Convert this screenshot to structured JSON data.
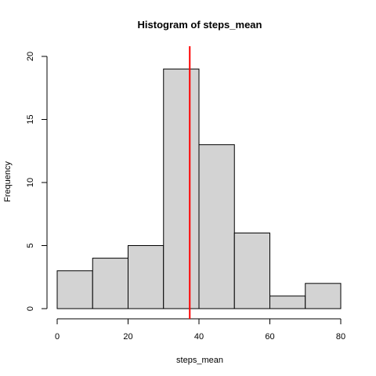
{
  "chart_data": {
    "type": "histogram",
    "title": "Histogram of steps_mean",
    "xlabel": "steps_mean",
    "ylabel": "Frequency",
    "bins": [
      {
        "from": 0,
        "to": 10,
        "count": 3
      },
      {
        "from": 10,
        "to": 20,
        "count": 4
      },
      {
        "from": 20,
        "to": 30,
        "count": 5
      },
      {
        "from": 30,
        "to": 40,
        "count": 19
      },
      {
        "from": 40,
        "to": 50,
        "count": 13
      },
      {
        "from": 50,
        "to": 60,
        "count": 6
      },
      {
        "from": 60,
        "to": 70,
        "count": 1
      },
      {
        "from": 70,
        "to": 80,
        "count": 2
      }
    ],
    "xlim": [
      0,
      80
    ],
    "ylim": [
      0,
      20
    ],
    "x_ticks": [
      0,
      20,
      40,
      60,
      80
    ],
    "y_ticks": [
      0,
      5,
      10,
      15,
      20
    ],
    "reference_line": {
      "x": 37.4,
      "color": "#ff0000"
    },
    "bar_fill": "#d3d3d3",
    "bar_stroke": "#000000",
    "grid": false,
    "legend": "none"
  }
}
